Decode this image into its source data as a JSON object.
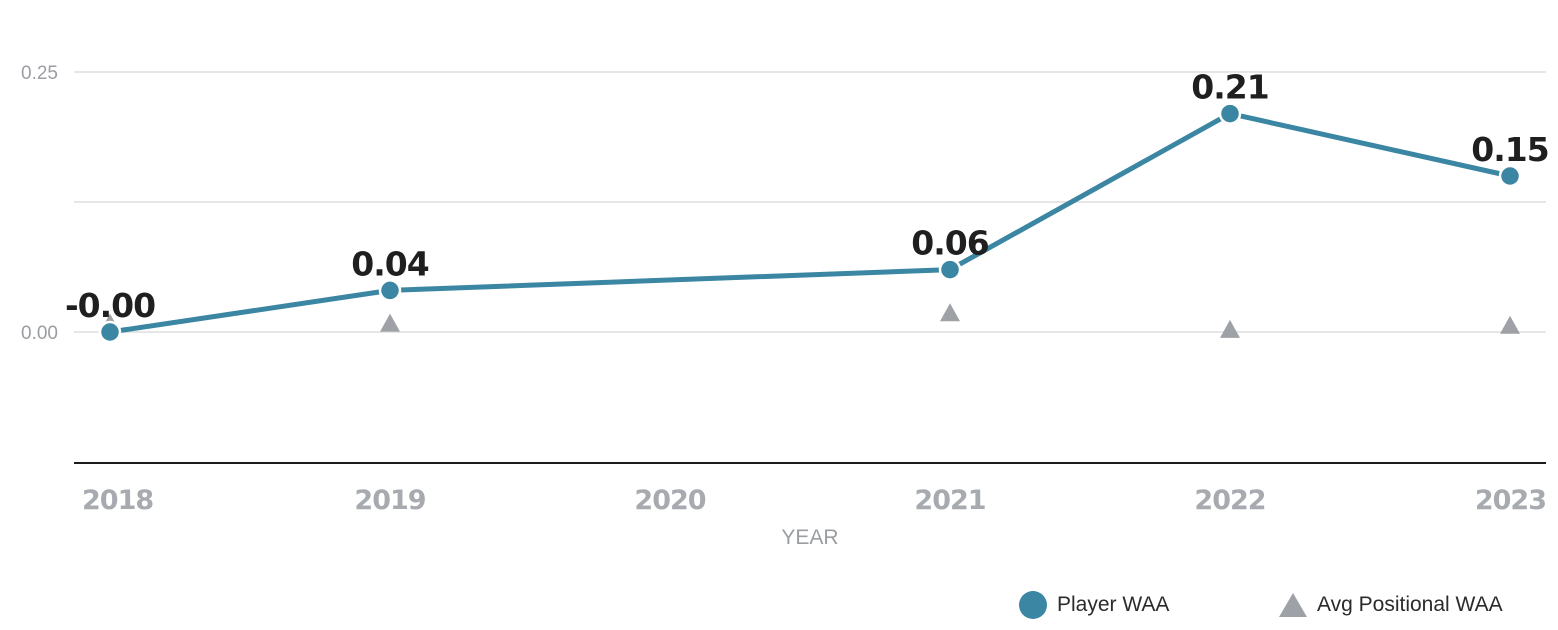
{
  "chart_data": {
    "type": "line",
    "categories": [
      "2018",
      "2019",
      "2020",
      "2021",
      "2022",
      "2023"
    ],
    "x": [
      2018,
      2019,
      2021,
      2022,
      2023
    ],
    "series": [
      {
        "name": "Player WAA",
        "marker": "circle",
        "color": "#3b86a3",
        "x": [
          2018,
          2019,
          2021,
          2022,
          2023
        ],
        "values": [
          -0.0,
          0.04,
          0.06,
          0.21,
          0.15
        ],
        "labels": [
          "-0.00",
          "0.04",
          "0.06",
          "0.21",
          "0.15"
        ]
      },
      {
        "name": "Avg Positional WAA",
        "marker": "triangle",
        "color": "#9ea2a6",
        "x": [
          2018,
          2019,
          2021,
          2022,
          2023
        ],
        "values": [
          0.008,
          0.008,
          0.018,
          0.002,
          0.006
        ]
      }
    ],
    "yticks": [
      "0.25",
      "0.00"
    ],
    "ytick_values": [
      0.25,
      0.0
    ],
    "ylim": [
      -0.125,
      0.25
    ],
    "xlabel": "YEAR",
    "ylabel": "",
    "grid": true,
    "legend_position": "bottom-right"
  }
}
